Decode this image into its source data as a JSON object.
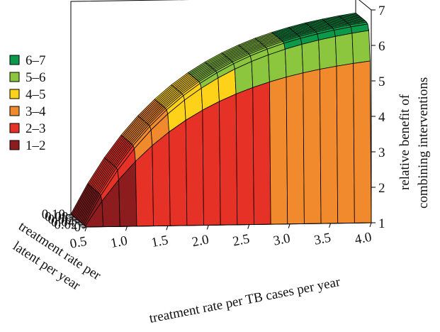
{
  "chart_data": {
    "type": "surface",
    "x_axis": {
      "label": "treatment rate per TB cases per year",
      "ticks": [
        "0.5",
        "1.0",
        "1.5",
        "2.0",
        "2.5",
        "3.0",
        "3.5",
        "4.0"
      ],
      "range": [
        0.5,
        4.0
      ]
    },
    "y_axis": {
      "label_lines": [
        "treatment rate per",
        "latent per year"
      ],
      "ticks": [
        "0",
        "0.02",
        "0.04",
        "0.06",
        "0.08",
        "0.10"
      ],
      "range": [
        0,
        0.1
      ]
    },
    "z_axis": {
      "label_lines": [
        "relative benefit of",
        "combining interventions"
      ],
      "ticks": [
        "1",
        "2",
        "3",
        "4",
        "5",
        "6",
        "7"
      ],
      "range": [
        1,
        7
      ]
    },
    "legend": {
      "placement": "left",
      "entries": [
        {
          "label": "6–7",
          "color": "#0a9a4a"
        },
        {
          "label": "5–6",
          "color": "#8cc63f"
        },
        {
          "label": "4–5",
          "color": "#ffd21a"
        },
        {
          "label": "3–4",
          "color": "#f08a2c"
        },
        {
          "label": "2–3",
          "color": "#e63127"
        },
        {
          "label": "1–2",
          "color": "#8c1c1e"
        }
      ]
    },
    "grid": true,
    "surface_samples": {
      "x": [
        0.5,
        4.0,
        4.0,
        4.0
      ],
      "y": [
        0,
        0,
        0.1,
        0.02
      ],
      "z": [
        1.0,
        1.0,
        7.0,
        2.0
      ]
    }
  }
}
